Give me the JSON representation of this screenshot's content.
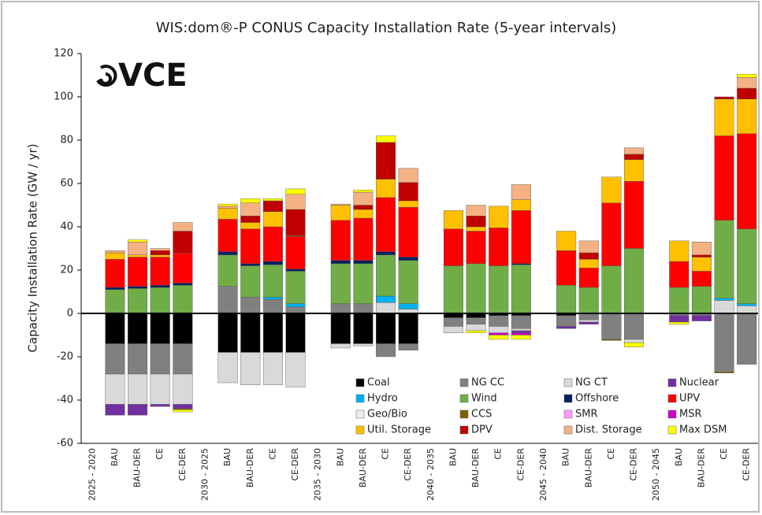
{
  "chart_data": {
    "type": "bar",
    "stacked": true,
    "title": "WIS:dom®-P CONUS Capacity Installation Rate (5-year intervals)",
    "logo": "VCE",
    "y_label": "Capacity Installation Rate (GW / yr)",
    "ylim": [
      -60,
      120
    ],
    "yticks": [
      -60,
      -40,
      -20,
      0,
      20,
      40,
      60,
      80,
      100,
      120
    ],
    "categories": [
      "2025 - 2020",
      "BAU",
      "BAU-DER",
      "CE",
      "CE-DER",
      "2030 - 2025",
      "BAU",
      "BAU-DER",
      "CE",
      "CE-DER",
      "2035 - 2030",
      "BAU",
      "BAU-DER",
      "CE",
      "CE-DER",
      "2040 - 2035",
      "BAU",
      "BAU-DER",
      "CE",
      "CE-DER",
      "2045 - 2040",
      "BAU",
      "BAU-DER",
      "CE",
      "CE-DER",
      "2050 - 2045",
      "BAU",
      "BAU-DER",
      "CE",
      "CE-DER"
    ],
    "series": [
      {
        "name": "Coal",
        "color": "#000000",
        "values": [
          null,
          -14,
          -14,
          -14,
          -14,
          null,
          -18,
          -18,
          -18,
          -18,
          null,
          -14,
          -14,
          -14,
          -14,
          null,
          -2,
          -2,
          -1,
          -1,
          null,
          -1,
          0,
          0,
          0,
          null,
          0,
          0,
          0,
          0
        ]
      },
      {
        "name": "NG CC",
        "color": "#808080",
        "values": [
          null,
          -14,
          -14,
          -14,
          -14,
          null,
          12.5,
          7.5,
          6.5,
          3,
          null,
          4.5,
          4.5,
          -6,
          -3,
          null,
          -4,
          -3,
          -5,
          -6,
          null,
          -5,
          -3,
          -12,
          -12,
          null,
          -1,
          -1,
          -27,
          -23.5
        ]
      },
      {
        "name": "NG CT",
        "color": "#d9d9d9",
        "values": [
          null,
          -14,
          -14,
          -14,
          -14,
          null,
          -14,
          -15,
          -15,
          -16,
          null,
          -2,
          -1,
          5,
          2,
          null,
          -3,
          -3,
          -3,
          -1,
          null,
          0,
          -1,
          0,
          -1.5,
          null,
          0,
          0,
          6,
          3.5
        ]
      },
      {
        "name": "Nuclear",
        "color": "#7030a0",
        "values": [
          null,
          -5,
          -5,
          -1,
          -2,
          null,
          0,
          0,
          0,
          0,
          null,
          0,
          0,
          0,
          0,
          null,
          0,
          0,
          0,
          -1,
          null,
          -1,
          -1,
          0,
          0,
          null,
          -3,
          -2.5,
          0,
          0
        ]
      },
      {
        "name": "Hydro",
        "color": "#00b0f0",
        "values": [
          null,
          0,
          0,
          0,
          0,
          null,
          0,
          0,
          1,
          1.5,
          null,
          0,
          0,
          3,
          2.5,
          null,
          0,
          0,
          0,
          0,
          null,
          0,
          0,
          0,
          0,
          null,
          0,
          0,
          1,
          1
        ]
      },
      {
        "name": "Wind",
        "color": "#70ad47",
        "values": [
          null,
          11,
          11.5,
          12,
          13,
          null,
          14.5,
          14.5,
          15,
          15,
          null,
          18.5,
          18.5,
          19,
          20,
          null,
          22,
          23,
          22,
          22.5,
          null,
          13,
          12,
          22,
          30,
          null,
          12,
          12.5,
          36,
          34.5
        ]
      },
      {
        "name": "Offshore",
        "color": "#002060",
        "values": [
          null,
          1,
          1,
          1,
          1,
          null,
          1.5,
          1,
          1.5,
          1,
          null,
          1.5,
          1.5,
          1.5,
          1.5,
          null,
          0,
          0,
          0,
          0.5,
          null,
          0,
          0,
          0,
          0,
          null,
          0,
          0,
          0,
          0
        ]
      },
      {
        "name": "UPV",
        "color": "#ff0000",
        "values": [
          null,
          13,
          13.5,
          13,
          14,
          null,
          15,
          16,
          16,
          15,
          null,
          18.5,
          19.5,
          25,
          23,
          null,
          17,
          15,
          17.5,
          24.5,
          null,
          16,
          9,
          29,
          31,
          null,
          12,
          7,
          39,
          44
        ]
      },
      {
        "name": "Geo/Bio",
        "color": "#ededed",
        "values": [
          null,
          0,
          0,
          0,
          0,
          null,
          0,
          0,
          0,
          0,
          null,
          0,
          0,
          0,
          0,
          null,
          0,
          0,
          0,
          0,
          null,
          0,
          0,
          0,
          0,
          null,
          0,
          0,
          0,
          0
        ]
      },
      {
        "name": "CCS",
        "color": "#7f6000",
        "values": [
          null,
          0,
          0,
          0,
          -0.5,
          null,
          0,
          0,
          0,
          0.5,
          null,
          0,
          0,
          0,
          0,
          null,
          0,
          0,
          0,
          0,
          null,
          0,
          0,
          -0.5,
          0,
          null,
          0,
          0,
          -0.5,
          0
        ]
      },
      {
        "name": "SMR",
        "color": "#ff99ff",
        "values": [
          null,
          0,
          0,
          0,
          0,
          null,
          0,
          0,
          0,
          0,
          null,
          0,
          0,
          0,
          0,
          null,
          0,
          0,
          0,
          0,
          null,
          0,
          0,
          0,
          0,
          null,
          0,
          0,
          0,
          0
        ]
      },
      {
        "name": "MSR",
        "color": "#cc00cc",
        "values": [
          null,
          0,
          0,
          0,
          0,
          null,
          0,
          0,
          0,
          0,
          null,
          0,
          0,
          0,
          0,
          null,
          0,
          0,
          -1,
          -1,
          null,
          0,
          0,
          0,
          0,
          null,
          0,
          0,
          0,
          0
        ]
      },
      {
        "name": "Util. Storage",
        "color": "#ffc000",
        "values": [
          null,
          3,
          1,
          1,
          0,
          null,
          5,
          3,
          7,
          0,
          null,
          7,
          4,
          8.5,
          3,
          null,
          8.5,
          2,
          10,
          5,
          null,
          9,
          4,
          12,
          10,
          null,
          9.5,
          6.5,
          17,
          16
        ]
      },
      {
        "name": "DPV",
        "color": "#c00000",
        "values": [
          null,
          0,
          0,
          2,
          10,
          null,
          0,
          3,
          5,
          12,
          null,
          0,
          2,
          17,
          8.5,
          null,
          0,
          5,
          0,
          0,
          null,
          0,
          3,
          0,
          2.5,
          null,
          0,
          1,
          1,
          5
        ]
      },
      {
        "name": "Dist. Storage",
        "color": "#f4b183",
        "values": [
          null,
          1,
          6,
          1,
          4,
          null,
          1,
          6,
          0,
          7,
          null,
          0.5,
          6,
          0,
          6.5,
          null,
          0,
          5,
          0,
          7,
          null,
          0,
          5.5,
          0,
          3,
          null,
          0,
          6,
          0,
          5
        ]
      },
      {
        "name": "Max DSM",
        "color": "#ffff00",
        "values": [
          null,
          0,
          1,
          0,
          -1,
          null,
          1,
          2,
          1,
          2.5,
          null,
          0,
          1,
          3,
          0,
          null,
          0,
          -1,
          -2,
          -2,
          null,
          0,
          0,
          0,
          -2,
          null,
          -1,
          0,
          0,
          1.5
        ]
      }
    ]
  }
}
